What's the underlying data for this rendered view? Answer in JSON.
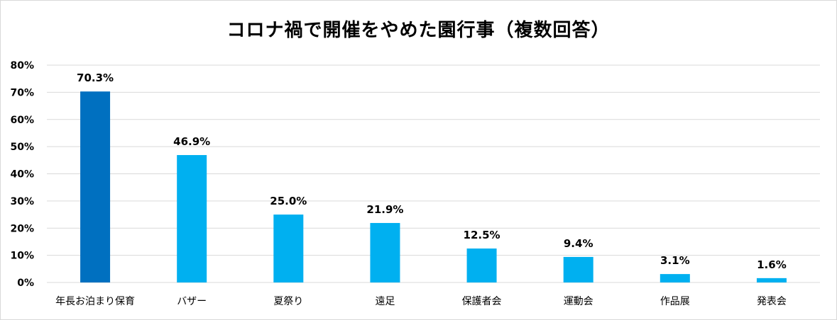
{
  "chart_data": {
    "type": "bar",
    "title": "コロナ禍で開催をやめた園行事（複数回答）",
    "categories": [
      "年長お泊まり保育",
      "バザー",
      "夏祭り",
      "遠足",
      "保護者会",
      "運動会",
      "作品展",
      "発表会"
    ],
    "values": [
      70.3,
      46.9,
      25.0,
      21.9,
      12.5,
      9.4,
      3.1,
      1.6
    ],
    "data_labels": [
      "70.3%",
      "46.9%",
      "25.0%",
      "21.9%",
      "12.5%",
      "9.4%",
      "3.1%",
      "1.6%"
    ],
    "ylim": [
      0,
      80
    ],
    "yticks": [
      0,
      10,
      20,
      30,
      40,
      50,
      60,
      70,
      80
    ],
    "ytick_labels": [
      "0%",
      "10%",
      "20%",
      "30%",
      "40%",
      "50%",
      "60%",
      "70%",
      "80%"
    ],
    "xlabel": "",
    "ylabel": "",
    "grid": true,
    "legend": "none",
    "colors": {
      "highlight": "#0070c0",
      "bar": "#00b0f0",
      "grid": "#d9d9d9"
    },
    "highlight_index": 0
  }
}
